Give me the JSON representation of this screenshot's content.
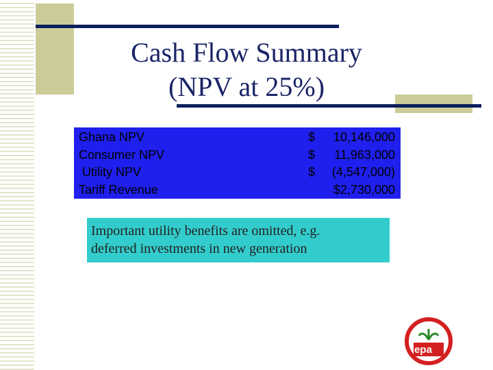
{
  "slide": {
    "title": [
      "Cash Flow Summary",
      "(NPV at 25%)"
    ],
    "table": {
      "rows": [
        {
          "label": "Ghana NPV",
          "currency": "$",
          "amount": "10,146,000"
        },
        {
          "label": "Consumer NPV",
          "currency": "$",
          "amount": "11,963,000"
        },
        {
          "label": "Utility NPV",
          "currency": "$",
          "amount": "(4,547,000)"
        },
        {
          "label": "Tariff Revenue",
          "amount": "$2,730,000"
        }
      ]
    },
    "note": [
      "Important utility benefits are omitted, e.g.",
      "deferred investments in new generation"
    ],
    "logo": {
      "text": "epa"
    }
  }
}
